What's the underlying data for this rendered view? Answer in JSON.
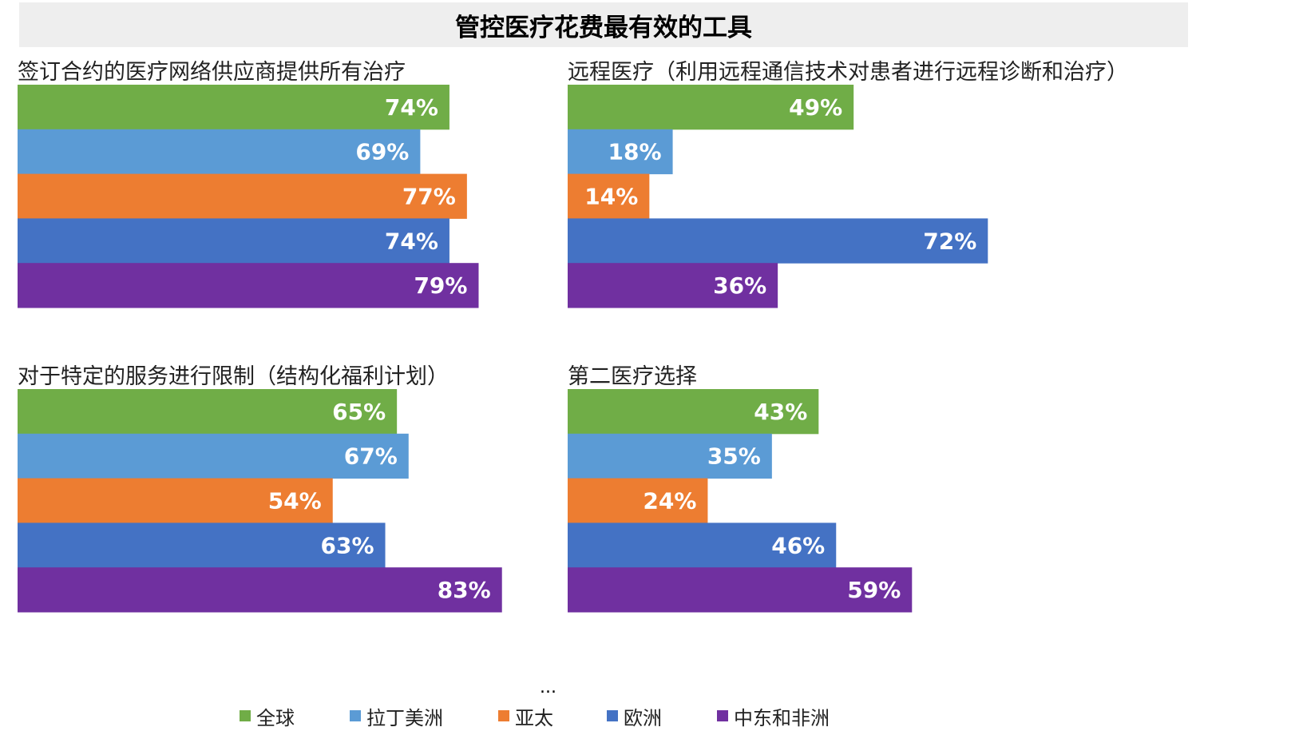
{
  "title": "管控医疗花费最有效的工具",
  "ellipsis": "...",
  "colors": {
    "全球": "#70ad47",
    "拉丁美洲": "#5b9bd5",
    "亚太": "#ed7d31",
    "欧洲": "#4472c4",
    "中东和非洲": "#7030a0"
  },
  "legend": [
    "全球",
    "拉丁美洲",
    "亚太",
    "欧洲",
    "中东和非洲"
  ],
  "chart_data": [
    {
      "type": "bar",
      "title": "签订合约的医疗网络供应商提供所有治疗",
      "orientation": "horizontal",
      "categories": [
        "全球",
        "拉丁美洲",
        "亚太",
        "欧洲",
        "中东和非洲"
      ],
      "values": [
        74,
        69,
        77,
        74,
        79
      ],
      "labels": [
        "74%",
        "69%",
        "77%",
        "74%",
        "79%"
      ],
      "xlim": [
        0,
        100
      ]
    },
    {
      "type": "bar",
      "title": "远程医疗（利用远程通信技术对患者进行远程诊断和治疗）",
      "orientation": "horizontal",
      "categories": [
        "全球",
        "拉丁美洲",
        "亚太",
        "欧洲",
        "中东和非洲"
      ],
      "values": [
        49,
        18,
        14,
        72,
        36
      ],
      "labels": [
        "49%",
        "18%",
        "14%",
        "72%",
        "36%"
      ],
      "xlim": [
        0,
        100
      ]
    },
    {
      "type": "bar",
      "title": "对于特定的服务进行限制（结构化福利计划）",
      "orientation": "horizontal",
      "categories": [
        "全球",
        "拉丁美洲",
        "亚太",
        "欧洲",
        "中东和非洲"
      ],
      "values": [
        65,
        67,
        54,
        63,
        83
      ],
      "labels": [
        "65%",
        "67%",
        "54%",
        "63%",
        "83%"
      ],
      "xlim": [
        0,
        100
      ]
    },
    {
      "type": "bar",
      "title": "第二医疗选择",
      "orientation": "horizontal",
      "categories": [
        "全球",
        "拉丁美洲",
        "亚太",
        "欧洲",
        "中东和非洲"
      ],
      "values": [
        43,
        35,
        24,
        46,
        59
      ],
      "labels": [
        "43%",
        "35%",
        "24%",
        "46%",
        "59%"
      ],
      "xlim": [
        0,
        100
      ]
    }
  ]
}
